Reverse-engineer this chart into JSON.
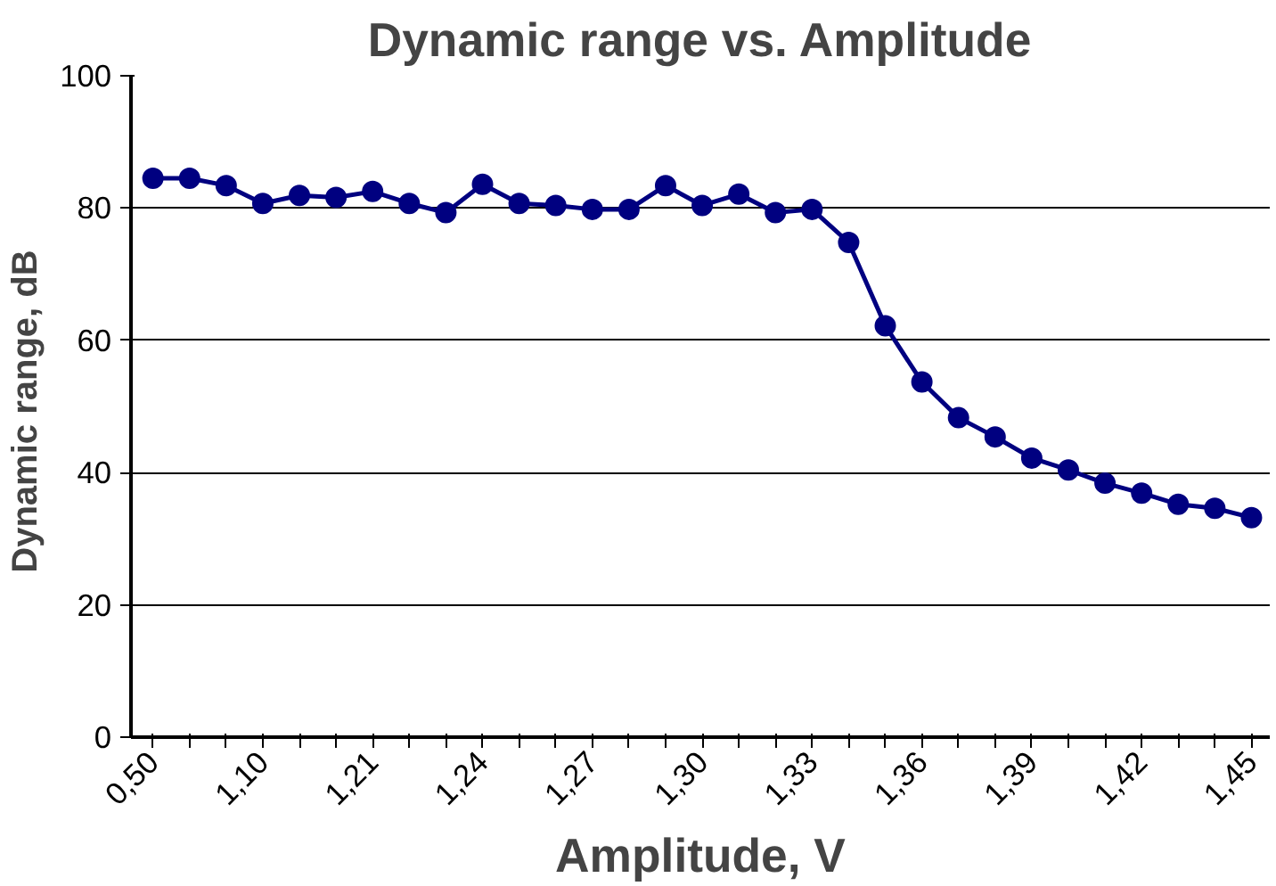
{
  "chart_data": {
    "type": "line",
    "title": "Dynamic range vs. Amplitude",
    "xlabel": "Amplitude, V",
    "ylabel": "Dynamic range,  dB",
    "categories": [
      "0,50",
      null,
      null,
      "1,10",
      null,
      null,
      "1,21",
      null,
      null,
      "1,24",
      null,
      null,
      "1,27",
      null,
      null,
      "1,30",
      null,
      null,
      "1,33",
      null,
      null,
      "1,36",
      null,
      null,
      "1,39",
      null,
      null,
      "1,42",
      null,
      null,
      "1,45"
    ],
    "series": [
      {
        "color": "#000080",
        "values": [
          84.5,
          84.5,
          83.4,
          80.7,
          81.9,
          81.6,
          82.5,
          80.7,
          79.3,
          83.6,
          80.7,
          80.4,
          79.8,
          79.8,
          83.4,
          80.4,
          82.1,
          79.3,
          79.8,
          74.8,
          62.2,
          53.7,
          48.3,
          45.4,
          42.2,
          40.4,
          38.4,
          36.9,
          35.2,
          34.6,
          33.2
        ]
      }
    ],
    "ylim": [
      0,
      100
    ],
    "yticks": [
      0,
      20,
      40,
      60,
      80,
      100
    ],
    "grid": "y",
    "marker": "circle",
    "line_style": "solid"
  }
}
